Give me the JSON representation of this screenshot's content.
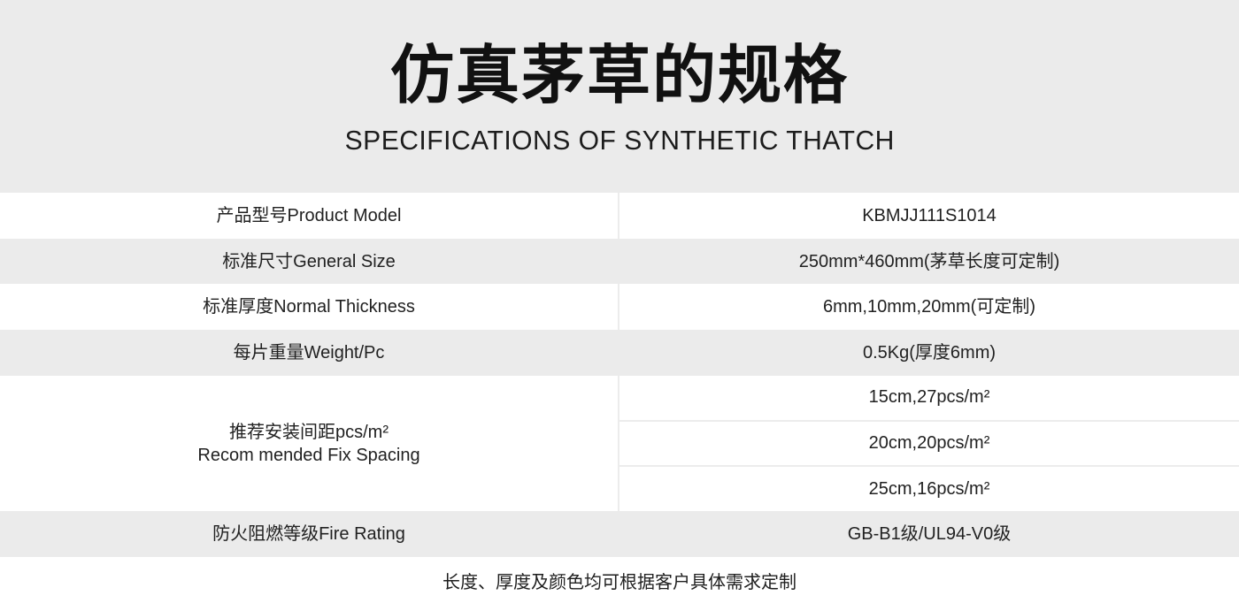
{
  "header": {
    "title_cn": "仿真茅草的规格",
    "title_en": "SPECIFICATIONS OF SYNTHETIC THATCH"
  },
  "colors": {
    "header_bg": "#ebebeb",
    "shaded_row_bg": "#ebebeb",
    "row_bg": "#ffffff",
    "divider": "#ececec",
    "text": "#212121",
    "title_text": "#111111"
  },
  "table": {
    "rows": [
      {
        "label": "产品型号Product Model",
        "value": "KBMJJ111S1014",
        "shaded": false
      },
      {
        "label": "标准尺寸General Size",
        "value": "250mm*460mm(茅草长度可定制)",
        "shaded": true
      },
      {
        "label": "标准厚度Normal Thickness",
        "value": "6mm,10mm,20mm(可定制)",
        "shaded": false
      },
      {
        "label": "每片重量Weight/Pc",
        "value": "0.5Kg(厚度6mm)",
        "shaded": true
      },
      {
        "label_line1": "推荐安装间距pcs/m²",
        "label_line2": "Recom mended Fix Spacing",
        "values": [
          "15cm,27pcs/m²",
          "20cm,20pcs/m²",
          "25cm,16pcs/m²"
        ],
        "shaded": false
      },
      {
        "label": "防火阻燃等级Fire Rating",
        "value": "GB-B1级/UL94-V0级",
        "shaded": true
      }
    ]
  },
  "footer": {
    "note": "长度、厚度及颜色均可根据客户具体需求定制"
  }
}
